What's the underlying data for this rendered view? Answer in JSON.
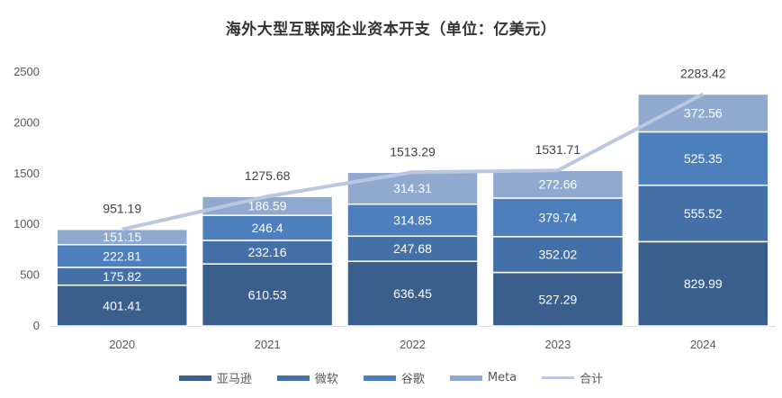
{
  "title": "海外大型互联网企业资本开支（单位：亿美元）",
  "colors": {
    "amazon": "#3a5f8c",
    "microsoft": "#4470a8",
    "google": "#4d7fbc",
    "meta": "#8fa9cf",
    "total": "#b9c8e0"
  },
  "legend": [
    {
      "label": "亚马逊",
      "key": "amazon",
      "kind": "bar"
    },
    {
      "label": "微软",
      "key": "microsoft",
      "kind": "bar"
    },
    {
      "label": "谷歌",
      "key": "google",
      "kind": "bar"
    },
    {
      "label": "Meta",
      "key": "meta",
      "kind": "bar"
    },
    {
      "label": "合计",
      "key": "total",
      "kind": "line"
    }
  ],
  "chart_data": {
    "type": "bar",
    "stacked": true,
    "title": "海外大型互联网企业资本开支（单位：亿美元）",
    "xlabel": "",
    "ylabel": "",
    "ylim": [
      0,
      2500
    ],
    "yticks": [
      0,
      500,
      1000,
      1500,
      2000,
      2500
    ],
    "grid": false,
    "legend_position": "bottom",
    "categories": [
      "2020",
      "2021",
      "2022",
      "2023",
      "2024"
    ],
    "series": [
      {
        "name": "亚马逊",
        "values": [
          401.41,
          610.53,
          636.45,
          527.29,
          829.99
        ]
      },
      {
        "name": "微软",
        "values": [
          175.82,
          232.16,
          247.68,
          352.02,
          555.52
        ]
      },
      {
        "name": "谷歌",
        "values": [
          222.81,
          246.4,
          314.85,
          379.74,
          525.35
        ]
      },
      {
        "name": "Meta",
        "values": [
          151.15,
          186.59,
          314.31,
          272.66,
          372.56
        ]
      },
      {
        "name": "合计",
        "type": "line",
        "values": [
          951.19,
          1275.68,
          1513.29,
          1531.71,
          2283.42
        ]
      }
    ]
  }
}
